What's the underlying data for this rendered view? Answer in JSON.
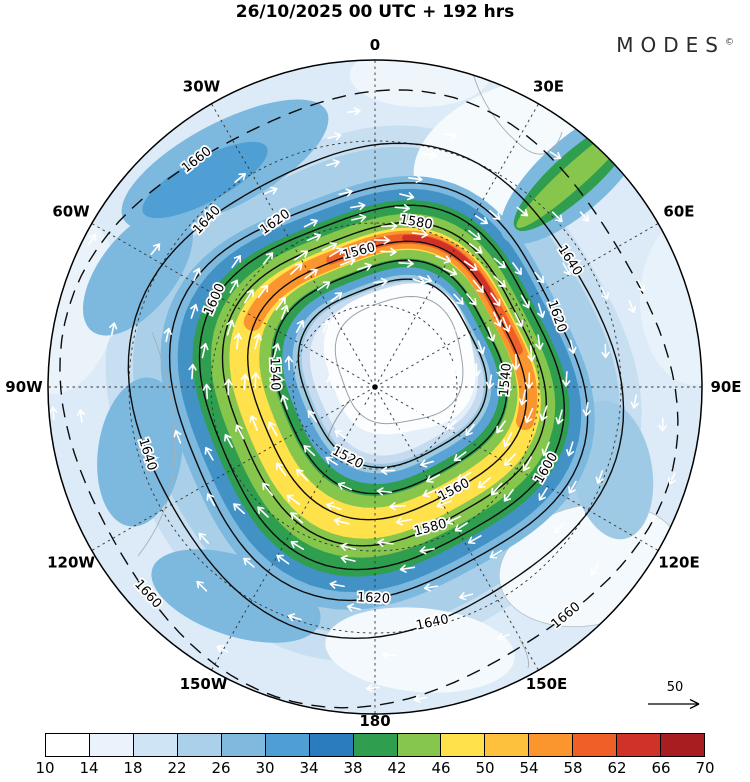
{
  "header": {
    "title": "26/10/2025 00 UTC + 192 hrs",
    "brand": "MODES",
    "brand_mark": "©"
  },
  "chart_data": {
    "type": "heatmap",
    "projection": "south polar stereographic",
    "title": "26/10/2025 00 UTC + 192 hrs",
    "shaded_field": "wind speed",
    "contour_field": "geopotential height",
    "contour_levels": [
      1520,
      1540,
      1560,
      1580,
      1600,
      1620,
      1640,
      1660
    ],
    "contour_interval": 20,
    "longitude_labels": [
      {
        "label": "0",
        "angle": 0
      },
      {
        "label": "30E",
        "angle": 30
      },
      {
        "label": "60E",
        "angle": 60
      },
      {
        "label": "90E",
        "angle": 90
      },
      {
        "label": "120E",
        "angle": 120
      },
      {
        "label": "150E",
        "angle": 150
      },
      {
        "label": "180",
        "angle": 180
      },
      {
        "label": "150W",
        "angle": 210
      },
      {
        "label": "120W",
        "angle": 240
      },
      {
        "label": "90W",
        "angle": 270
      },
      {
        "label": "60W",
        "angle": 300
      },
      {
        "label": "30W",
        "angle": 330
      }
    ],
    "graticule": {
      "meridian_step_deg": 30,
      "latitude_circles": 3
    },
    "colorbar": {
      "ticks": [
        10,
        14,
        18,
        22,
        26,
        30,
        34,
        38,
        42,
        46,
        50,
        54,
        58,
        62,
        66,
        70
      ],
      "colors": [
        "#ffffff",
        "#eaf3fb",
        "#cfe4f4",
        "#abd0e9",
        "#7fb9de",
        "#4f9fd4",
        "#2b7cbf",
        "#2f9e4f",
        "#86c64c",
        "#ffe14b",
        "#fdc13d",
        "#fb962f",
        "#ef6028",
        "#d03227",
        "#a81d20"
      ]
    },
    "reference_arrow_label": "50",
    "pole_marker": true
  }
}
